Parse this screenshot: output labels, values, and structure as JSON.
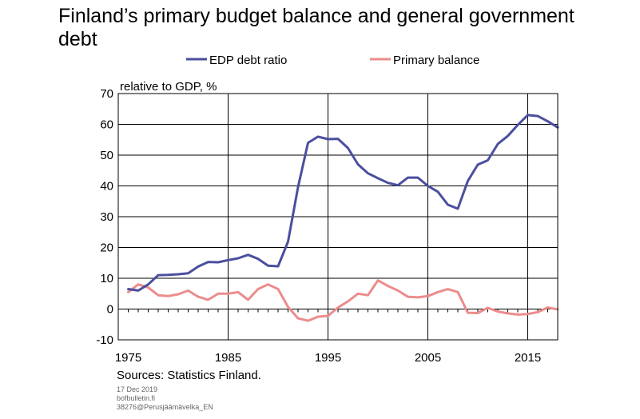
{
  "title": "Finland’s primary budget balance and general government debt",
  "footer": {
    "sources": "Sources: Statistics Finland.",
    "date": "17 Dec 2019",
    "site": "bofbulletin.fi",
    "code": "38276@Perusjäämävelka_EN"
  },
  "chart_data": {
    "type": "line",
    "ylabel": "relative to GDP, %",
    "ylim": [
      -10,
      70
    ],
    "yticks": [
      -10,
      0,
      10,
      20,
      30,
      40,
      50,
      60,
      70
    ],
    "xlim": [
      1974,
      2018
    ],
    "xticks": [
      1975,
      1985,
      1995,
      2005,
      2015
    ],
    "vgrid": [
      1985,
      1995,
      2005,
      2015
    ],
    "hgrid": [
      10,
      20,
      30,
      40,
      50,
      60
    ],
    "legend_position": "top",
    "series": [
      {
        "name": "EDP debt ratio",
        "color": "#4b4f9e",
        "x": [
          1975,
          1976,
          1977,
          1978,
          1979,
          1980,
          1981,
          1982,
          1983,
          1984,
          1985,
          1986,
          1987,
          1988,
          1989,
          1990,
          1991,
          1992,
          1993,
          1994,
          1995,
          1996,
          1997,
          1998,
          1999,
          2000,
          2001,
          2002,
          2003,
          2004,
          2005,
          2006,
          2007,
          2008,
          2009,
          2010,
          2011,
          2012,
          2013,
          2014,
          2015,
          2016,
          2017,
          2018
        ],
        "y": [
          6.5,
          6.0,
          8.0,
          11.0,
          11.1,
          11.3,
          11.6,
          13.8,
          15.3,
          15.2,
          15.9,
          16.5,
          17.6,
          16.3,
          14.1,
          13.9,
          21.9,
          39.6,
          54.0,
          56.0,
          55.2,
          55.3,
          52.3,
          47.0,
          44.1,
          42.5,
          41.0,
          40.2,
          42.7,
          42.7,
          40.0,
          38.1,
          33.9,
          32.6,
          41.6,
          46.9,
          48.3,
          53.6,
          56.2,
          59.8,
          63.0,
          62.7,
          61.0,
          59.0
        ]
      },
      {
        "name": "Primary balance",
        "color": "#ec8c8c",
        "x": [
          1975,
          1976,
          1977,
          1978,
          1979,
          1980,
          1981,
          1982,
          1983,
          1984,
          1985,
          1986,
          1987,
          1988,
          1989,
          1990,
          1991,
          1992,
          1993,
          1994,
          1995,
          1996,
          1997,
          1998,
          1999,
          2000,
          2001,
          2002,
          2003,
          2004,
          2005,
          2006,
          2007,
          2008,
          2009,
          2010,
          2011,
          2012,
          2013,
          2014,
          2015,
          2016,
          2017,
          2018
        ],
        "y": [
          5.5,
          8.0,
          7.0,
          4.5,
          4.2,
          4.8,
          6.0,
          4.0,
          3.0,
          5.0,
          5.0,
          5.5,
          3.0,
          6.5,
          8.0,
          6.5,
          0.7,
          -3.0,
          -3.8,
          -2.5,
          -2.2,
          0.5,
          2.5,
          5.0,
          4.5,
          9.3,
          7.5,
          6.0,
          4.0,
          3.8,
          4.2,
          5.5,
          6.5,
          5.5,
          -1.2,
          -1.3,
          0.4,
          -0.8,
          -1.4,
          -1.8,
          -1.6,
          -1.0,
          0.5,
          -0.1
        ]
      }
    ]
  }
}
